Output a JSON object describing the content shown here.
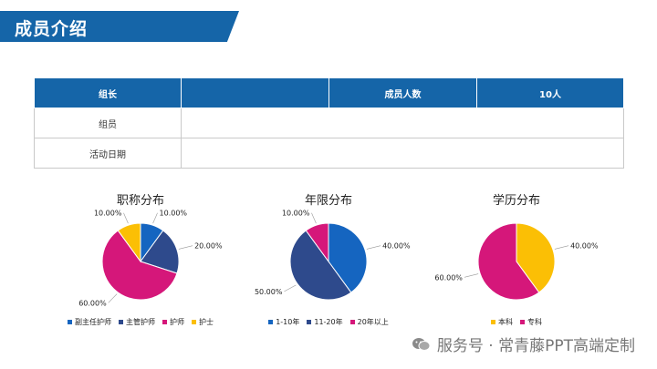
{
  "header": {
    "title": "成员介绍"
  },
  "table": {
    "row1": {
      "label": "组长",
      "empty": "",
      "count_label": "成员人数",
      "count_value": "10人"
    },
    "row2": {
      "label": "组员"
    },
    "row3": {
      "label": "活动日期"
    }
  },
  "colors": {
    "blue_light": "#1565c0",
    "blue_dark": "#2e4a8c",
    "magenta": "#d5177a",
    "yellow": "#fbbf05",
    "header": "#1565a8"
  },
  "chart_data": [
    {
      "type": "pie",
      "title": "职称分布",
      "categories": [
        "副主任护师",
        "主管护师",
        "护师",
        "护士"
      ],
      "values": [
        10,
        20,
        60,
        10
      ],
      "labels": [
        "10.00%",
        "20.00%",
        "60.00%",
        "10.00%"
      ],
      "colors": [
        "#1565c0",
        "#2e4a8c",
        "#d5177a",
        "#fbbf05"
      ],
      "legend": "bottom"
    },
    {
      "type": "pie",
      "title": "年限分布",
      "categories": [
        "1-10年",
        "11-20年",
        "20年以上"
      ],
      "values": [
        40,
        50,
        10
      ],
      "labels": [
        "40.00%",
        "50.00%",
        "10.00%"
      ],
      "colors": [
        "#1565c0",
        "#2e4a8c",
        "#d5177a"
      ],
      "legend": "bottom"
    },
    {
      "type": "pie",
      "title": "学历分布",
      "categories": [
        "本科",
        "专科"
      ],
      "values": [
        40,
        60
      ],
      "labels": [
        "40.00%",
        "60.00%"
      ],
      "colors": [
        "#fbbf05",
        "#d5177a"
      ],
      "legend": "bottom"
    }
  ],
  "watermark": {
    "text": "服务号 · 常青藤PPT高端定制",
    "icon": "wechat-icon"
  }
}
